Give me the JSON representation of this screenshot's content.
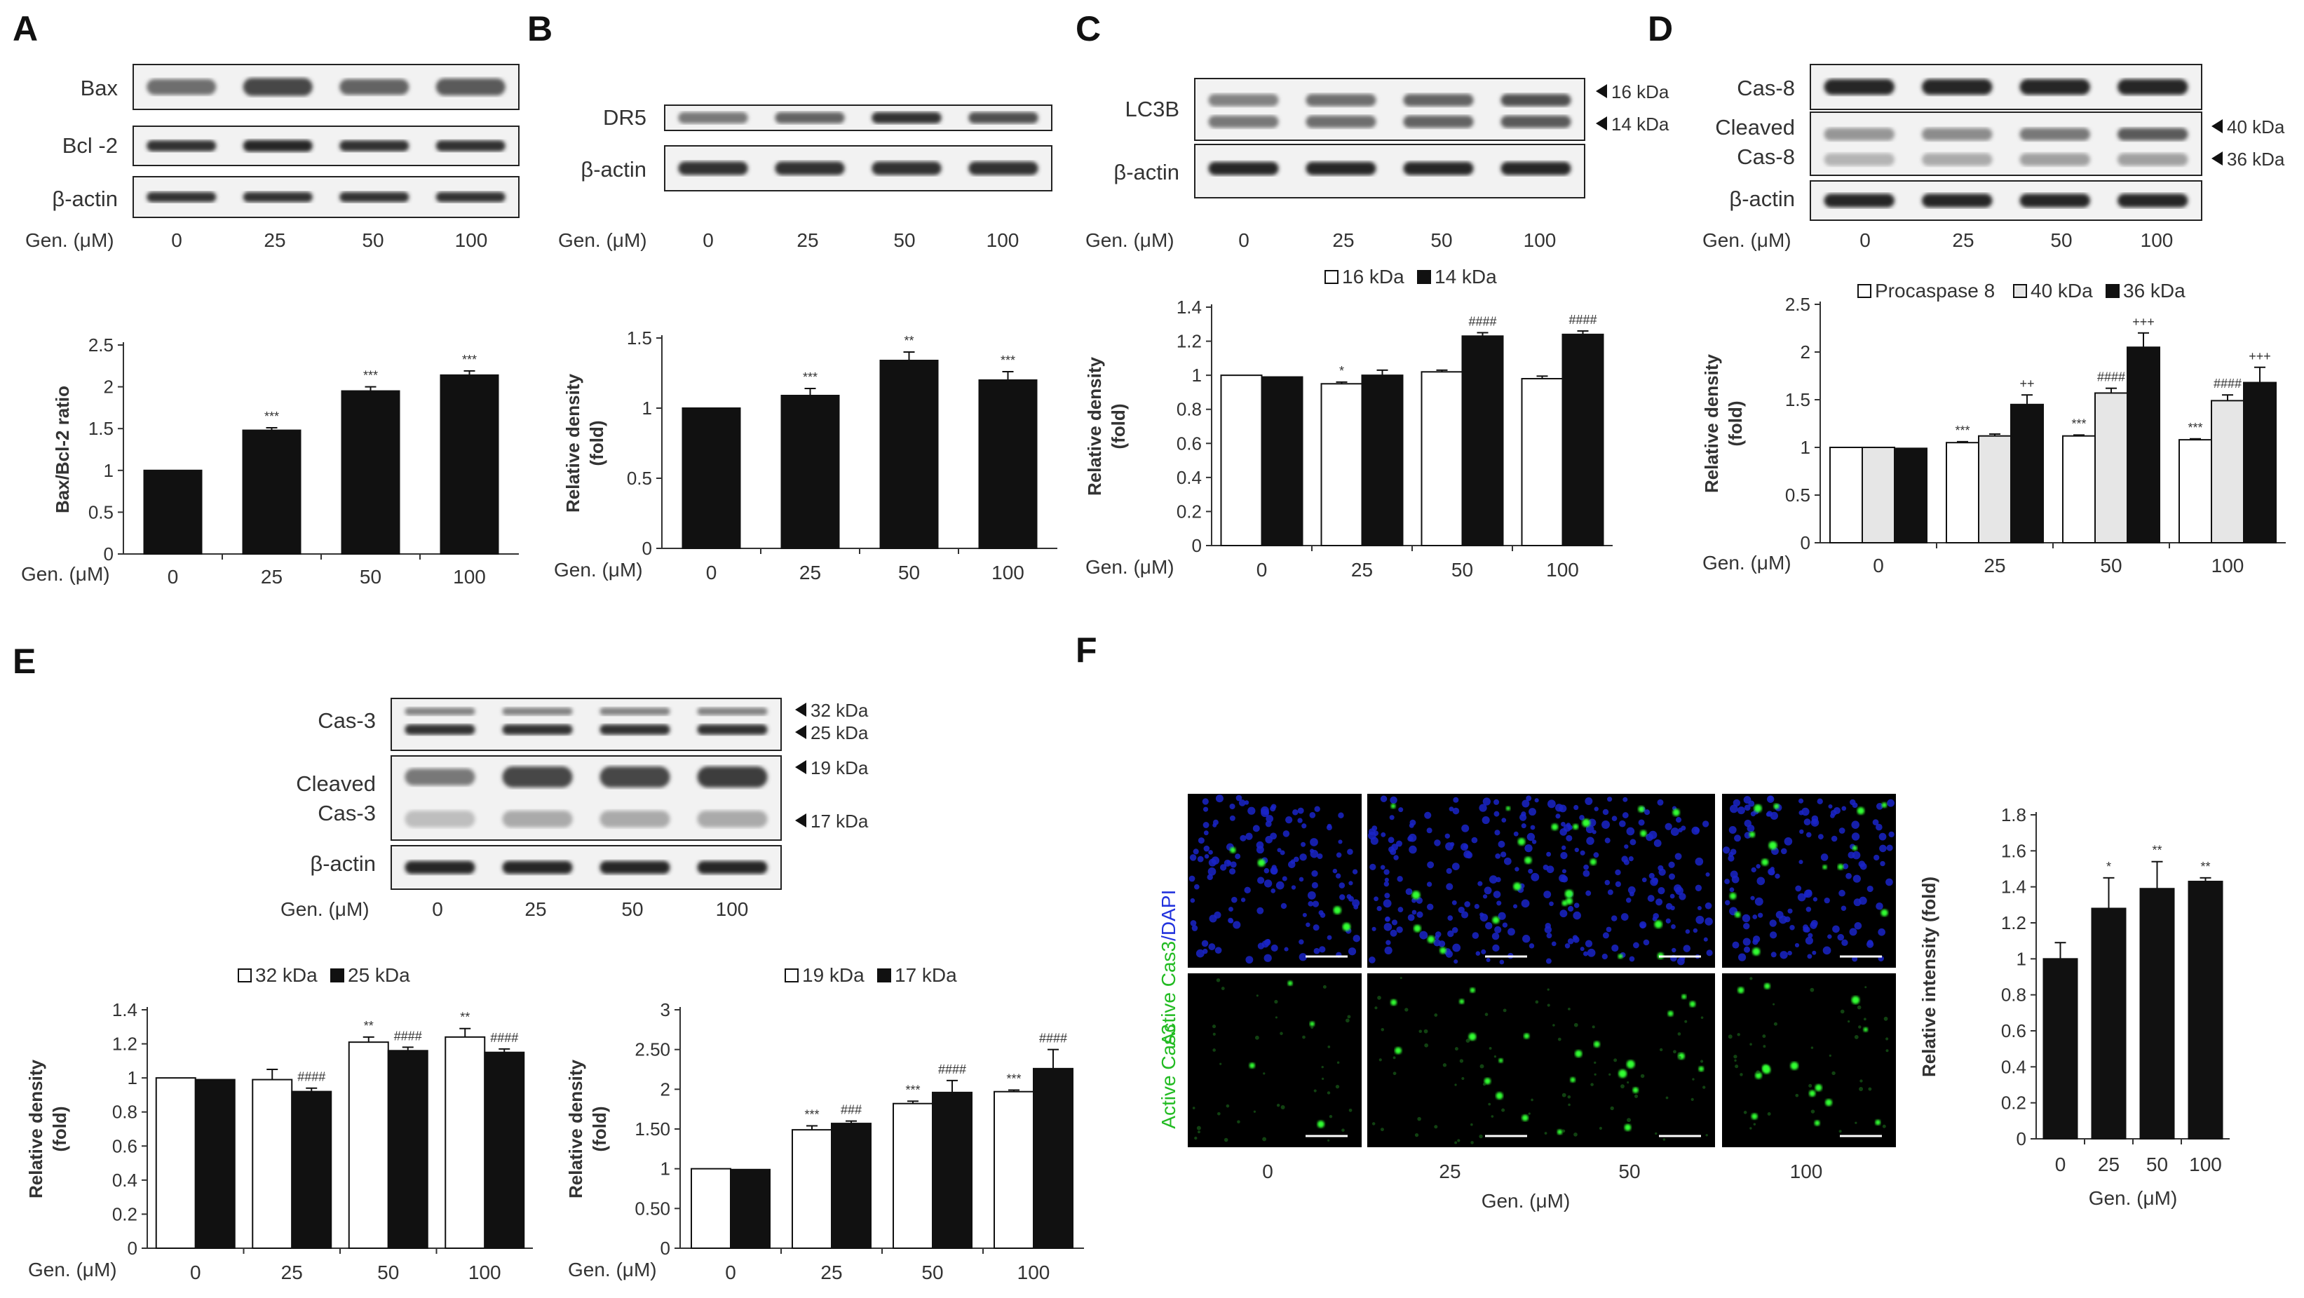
{
  "panel_labels": [
    "A",
    "B",
    "C",
    "D",
    "E",
    "F"
  ],
  "gen_label": "Gen. (μM)",
  "gen_label_f": "Gen. (μM)",
  "doses": [
    "0",
    "25",
    "50",
    "100"
  ],
  "blots": {
    "A": {
      "labels": [
        "Bax",
        "Bcl -2",
        "β-actin"
      ]
    },
    "B": {
      "labels": [
        "DR5",
        "β-actin"
      ]
    },
    "C": {
      "labels": [
        "LC3B",
        "β-actin"
      ],
      "kda": [
        "16 kDa",
        "14 kDa"
      ]
    },
    "D": {
      "labels": [
        "Cas-8",
        "Cleaved",
        "Cas-8",
        "β-actin"
      ],
      "kda": [
        "40 kDa",
        "36 kDa"
      ]
    },
    "E": {
      "labels": [
        "Cas-3",
        "Cleaved",
        "Cas-3",
        "β-actin"
      ],
      "kda": [
        "32 kDa",
        "25 kDa",
        "19 kDa",
        "17 kDa"
      ]
    }
  },
  "microscopy": {
    "row1_label_green": "Active Cas3",
    "row1_label_blue": "/DAPI",
    "row2_label": "Active Cas3",
    "colors": {
      "dapi": "#1a24c8",
      "cas3": "#33ff33",
      "background": "#000000"
    }
  },
  "chart_data": [
    {
      "id": "A",
      "type": "bar",
      "categories": [
        "0",
        "25",
        "50",
        "100"
      ],
      "series": [
        {
          "values": [
            1.0,
            1.48,
            1.95,
            2.14
          ],
          "errors": [
            0.0,
            0.03,
            0.05,
            0.05
          ],
          "sig": [
            "",
            "***",
            "***",
            "***"
          ]
        }
      ],
      "ylabel": "Bax/Bcl-2 ratio",
      "ylim": [
        0,
        2.5
      ],
      "yticks": [
        "0",
        "0.5",
        "1",
        "1.5",
        "2",
        "2.5"
      ],
      "xlabel": "Gen. (μM)"
    },
    {
      "id": "B",
      "type": "bar",
      "categories": [
        "0",
        "25",
        "50",
        "100"
      ],
      "series": [
        {
          "values": [
            1.0,
            1.09,
            1.34,
            1.2
          ],
          "errors": [
            0.0,
            0.05,
            0.06,
            0.06
          ],
          "sig": [
            "",
            "***",
            "**",
            "***"
          ]
        }
      ],
      "ylabel": "Relative density",
      "ylabel2": "(fold)",
      "ylim": [
        0,
        1.5
      ],
      "yticks": [
        "0",
        "0.5",
        "1",
        "1.5"
      ],
      "xlabel": "Gen. (μM)"
    },
    {
      "id": "C",
      "type": "bar",
      "categories": [
        "0",
        "25",
        "50",
        "100"
      ],
      "series": [
        {
          "name": "16 kDa",
          "values": [
            1.0,
            0.95,
            1.02,
            0.98
          ],
          "errors": [
            0.0,
            0.01,
            0.01,
            0.015
          ],
          "sig": [
            "",
            "*",
            "",
            ""
          ]
        },
        {
          "name": "14 kDa",
          "values": [
            0.99,
            1.0,
            1.23,
            1.24
          ],
          "errors": [
            0.0,
            0.03,
            0.02,
            0.02
          ],
          "sig": [
            "",
            "",
            "####",
            "####"
          ]
        }
      ],
      "ylabel": "Relative density",
      "ylabel2": "(fold)",
      "ylim": [
        0,
        1.4
      ],
      "yticks": [
        "0",
        "0.2",
        "0.4",
        "0.6",
        "0.8",
        "1",
        "1.2",
        "1.4"
      ],
      "xlabel": "Gen. (μM)"
    },
    {
      "id": "D",
      "type": "bar",
      "categories": [
        "0",
        "25",
        "50",
        "100"
      ],
      "series": [
        {
          "name": "Procaspase 8",
          "values": [
            1.0,
            1.05,
            1.12,
            1.08
          ],
          "errors": [
            0.0,
            0.01,
            0.01,
            0.01
          ],
          "sig": [
            "",
            "***",
            "***",
            "***"
          ]
        },
        {
          "name": "40 kDa",
          "values": [
            1.0,
            1.12,
            1.57,
            1.49
          ],
          "errors": [
            0.0,
            0.02,
            0.05,
            0.06
          ],
          "sig": [
            "",
            "",
            "####",
            "####"
          ]
        },
        {
          "name": "36 kDa",
          "values": [
            0.99,
            1.45,
            2.05,
            1.68
          ],
          "errors": [
            0.0,
            0.1,
            0.15,
            0.16
          ],
          "sig": [
            "",
            "++",
            "+++",
            "+++"
          ]
        }
      ],
      "ylabel": "Relative density",
      "ylabel2": "(fold)",
      "ylim": [
        0,
        2.5
      ],
      "yticks": [
        "0",
        "0.5",
        "1",
        "1.5",
        "2",
        "2.5"
      ],
      "xlabel": "Gen. (μM)"
    },
    {
      "id": "E1",
      "type": "bar",
      "categories": [
        "0",
        "25",
        "50",
        "100"
      ],
      "series": [
        {
          "name": "32 kDa",
          "values": [
            1.0,
            0.99,
            1.21,
            1.24
          ],
          "errors": [
            0.0,
            0.06,
            0.03,
            0.05
          ],
          "sig": [
            "",
            "",
            "**",
            "**"
          ]
        },
        {
          "name": "25 kDa",
          "values": [
            0.99,
            0.92,
            1.16,
            1.15
          ],
          "errors": [
            0.0,
            0.02,
            0.02,
            0.02
          ],
          "sig": [
            "",
            "####",
            "####",
            "####"
          ]
        }
      ],
      "ylabel": "Relative density",
      "ylabel2": "(fold)",
      "ylim": [
        0,
        1.4
      ],
      "yticks": [
        "0",
        "0.2",
        "0.4",
        "0.6",
        "0.8",
        "1",
        "1.2",
        "1.4"
      ],
      "xlabel": "Gen. (μM)"
    },
    {
      "id": "E2",
      "type": "bar",
      "categories": [
        "0",
        "25",
        "50",
        "100"
      ],
      "series": [
        {
          "name": "19 kDa",
          "values": [
            1.0,
            1.49,
            1.82,
            1.97
          ],
          "errors": [
            0.0,
            0.05,
            0.03,
            0.02
          ],
          "sig": [
            "",
            "***",
            "***",
            "***"
          ]
        },
        {
          "name": "17 kDa",
          "values": [
            0.99,
            1.57,
            1.96,
            2.26
          ],
          "errors": [
            0.0,
            0.03,
            0.15,
            0.24
          ],
          "sig": [
            "",
            "###",
            "####",
            "####"
          ]
        }
      ],
      "ylabel": "Relative density",
      "ylabel2": "(fold)",
      "ylim": [
        0,
        3
      ],
      "yticks": [
        "0",
        "0.50",
        "1",
        "1.50",
        "2",
        "2.50",
        "3"
      ],
      "xlabel": "Gen. (μM)"
    },
    {
      "id": "F",
      "type": "bar",
      "categories": [
        "0",
        "25",
        "50",
        "100"
      ],
      "series": [
        {
          "values": [
            1.0,
            1.28,
            1.39,
            1.43
          ],
          "errors": [
            0.09,
            0.17,
            0.15,
            0.02
          ],
          "sig": [
            "",
            "*",
            "**",
            "**"
          ]
        }
      ],
      "ylabel": "Relative intensity (fold)",
      "ylim": [
        0,
        1.8
      ],
      "yticks": [
        "0",
        "0.2",
        "0.4",
        "0.6",
        "0.8",
        "1",
        "1.2",
        "1.4",
        "1.6",
        "1.8"
      ],
      "xlabel": "Gen. (μM)"
    }
  ]
}
